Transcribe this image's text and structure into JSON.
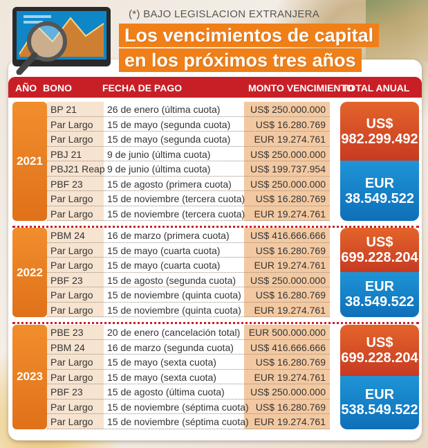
{
  "subtitle": "(*) BAJO LEGISLACION EXTRANJERA",
  "title": {
    "line1": "Los vencimientos de capital",
    "line2": "en los próximos tres años"
  },
  "headers": {
    "anio": "AÑO",
    "bono": "BONO",
    "fecha": "FECHA DE PAGO",
    "monto": "MONTO VENCIMIENTO",
    "total": "TOTAL ANUAL"
  },
  "colors": {
    "header": "#c81f27",
    "title_bg": "#f07f18",
    "usd_box": "#d54a26",
    "eur_box": "#1684c8"
  },
  "sections": [
    {
      "year": "2021",
      "rows": [
        {
          "bono": "BP 21",
          "fecha": "26 de enero (última cuota)",
          "monto": "US$ 250.000.000"
        },
        {
          "bono": "Par Largo",
          "fecha": "15 de mayo (segunda cuota)",
          "monto": "US$ 16.280.769"
        },
        {
          "bono": "Par Largo",
          "fecha": "15 de mayo (segunda cuota)",
          "monto": "EUR 19.274.761"
        },
        {
          "bono": "PBJ 21",
          "fecha": "9 de junio (última cuota)",
          "monto": "US$ 250.000.000"
        },
        {
          "bono": "PBJ21 Reap",
          "fecha": "9 de junio (última cuota)",
          "monto": "US$ 199.737.954"
        },
        {
          "bono": "PBF 23",
          "fecha": "15 de agosto (primera cuota)",
          "monto": "US$ 250.000.000"
        },
        {
          "bono": "Par Largo",
          "fecha": "15 de noviembre (tercera cuota)",
          "monto": "US$ 16.280.769"
        },
        {
          "bono": "Par Largo",
          "fecha": "15 de noviembre (tercera cuota)",
          "monto": "EUR 19.274.761"
        }
      ],
      "total_usd_cur": "US$",
      "total_usd": "982.299.492",
      "total_eur_cur": "EUR",
      "total_eur": "38.549.522"
    },
    {
      "year": "2022",
      "rows": [
        {
          "bono": "PBM 24",
          "fecha": "16 de marzo (primera cuota)",
          "monto": "US$ 416.666.666"
        },
        {
          "bono": "Par Largo",
          "fecha": "15 de mayo (cuarta cuota)",
          "monto": "US$ 16.280.769"
        },
        {
          "bono": "Par Largo",
          "fecha": "15 de mayo (cuarta cuota)",
          "monto": "EUR 19.274.761"
        },
        {
          "bono": "PBF 23",
          "fecha": "15 de agosto (segunda cuota)",
          "monto": "US$ 250.000.000"
        },
        {
          "bono": "Par Largo",
          "fecha": "15 de noviembre (quinta cuota)",
          "monto": "US$ 16.280.769"
        },
        {
          "bono": "Par Largo",
          "fecha": "15 de noviembre (quinta cuota)",
          "monto": "EUR 19.274.761"
        }
      ],
      "total_usd_cur": "US$",
      "total_usd": "699.228.204",
      "total_eur_cur": "EUR",
      "total_eur": "38.549.522"
    },
    {
      "year": "2023",
      "rows": [
        {
          "bono": "PBE 23",
          "fecha": "20 de enero (cancelación total)",
          "monto": "EUR 500.000.000"
        },
        {
          "bono": "PBM 24",
          "fecha": "16 de marzo (segunda cuota)",
          "monto": "US$ 416.666.666"
        },
        {
          "bono": "Par Largo",
          "fecha": "15 de mayo (sexta cuota)",
          "monto": "US$ 16.280.769"
        },
        {
          "bono": "Par Largo",
          "fecha": "15 de mayo (sexta cuota)",
          "monto": "EUR 19.274.761"
        },
        {
          "bono": "PBF 23",
          "fecha": "15 de agosto (última cuota)",
          "monto": "US$ 250.000.000"
        },
        {
          "bono": "Par Largo",
          "fecha": "15 de noviembre (séptima cuota)",
          "monto": "US$ 16.280.769"
        },
        {
          "bono": "Par Largo",
          "fecha": "15 de noviembre (séptima cuota)",
          "monto": "EUR 19.274.761"
        }
      ],
      "total_usd_cur": "US$",
      "total_usd": "699.228.204",
      "total_eur_cur": "EUR",
      "total_eur": "538.549.522"
    }
  ]
}
